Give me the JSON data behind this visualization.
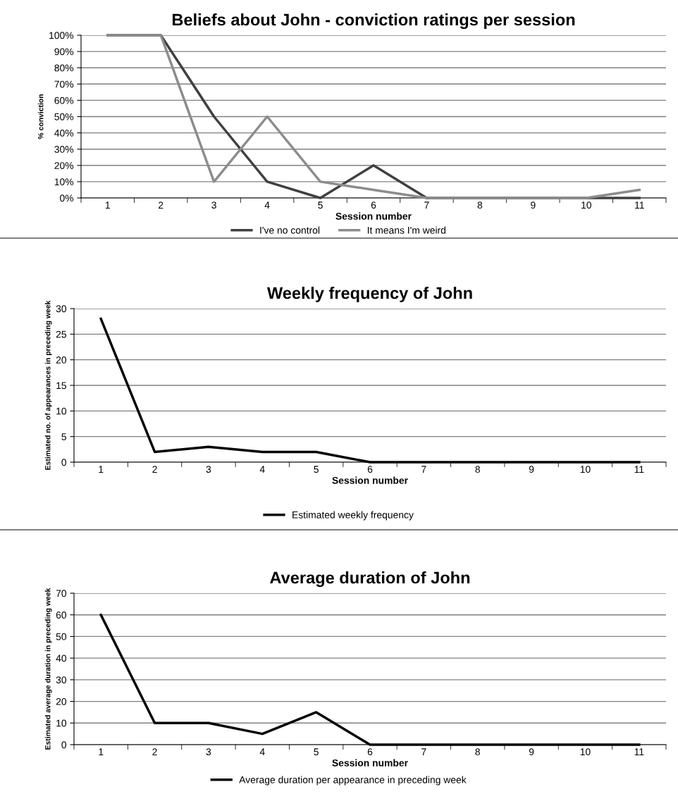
{
  "chart_data": [
    {
      "type": "line",
      "title": "Beliefs about John - conviction ratings per session",
      "xlabel": "Session number",
      "ylabel": "% conviction",
      "categories": [
        "1",
        "2",
        "3",
        "4",
        "5",
        "6",
        "7",
        "8",
        "9",
        "10",
        "11"
      ],
      "series": [
        {
          "name": "I've no control",
          "color": "#404040",
          "values": [
            100,
            100,
            50,
            10,
            0,
            20,
            0,
            0,
            0,
            0,
            0
          ]
        },
        {
          "name": "It means I'm weird",
          "color": "#8c8c8c",
          "values": [
            100,
            100,
            10,
            50,
            10,
            5,
            0,
            0,
            0,
            0,
            5
          ]
        }
      ],
      "ylim": [
        0,
        100
      ],
      "yticks": [
        {
          "value": 0,
          "label": "0%"
        },
        {
          "value": 10,
          "label": "10%"
        },
        {
          "value": 20,
          "label": "20%"
        },
        {
          "value": 30,
          "label": "30%"
        },
        {
          "value": 40,
          "label": "40%"
        },
        {
          "value": 50,
          "label": "50%"
        },
        {
          "value": 60,
          "label": "60%"
        },
        {
          "value": 70,
          "label": "70%"
        },
        {
          "value": 80,
          "label": "80%"
        },
        {
          "value": 90,
          "label": "90%"
        },
        {
          "value": 100,
          "label": "100%"
        }
      ],
      "grid": "y",
      "legend": "bottom",
      "marker": "none",
      "line_style": "solid"
    },
    {
      "type": "line",
      "title": "Weekly frequency of John",
      "xlabel": "Session number",
      "ylabel": "Estimated no. of appearances in preceding week",
      "categories": [
        "1",
        "2",
        "3",
        "4",
        "5",
        "6",
        "7",
        "8",
        "9",
        "10",
        "11"
      ],
      "series": [
        {
          "name": "Estimated weekly frequency",
          "color": "#000000",
          "values": [
            28,
            2,
            3,
            2,
            2,
            0,
            0,
            0,
            0,
            0,
            0
          ]
        }
      ],
      "ylim": [
        0,
        30
      ],
      "yticks": [
        0,
        5,
        10,
        15,
        20,
        25,
        30
      ],
      "grid": "y",
      "legend": "bottom",
      "marker": "none",
      "line_style": "solid"
    },
    {
      "type": "line",
      "title": "Average duration of John",
      "xlabel": "Session number",
      "ylabel": "Estimated average duration in preceding week",
      "categories": [
        "1",
        "2",
        "3",
        "4",
        "5",
        "6",
        "7",
        "8",
        "9",
        "10",
        "11"
      ],
      "series": [
        {
          "name": "Average duration per appearance in preceding week",
          "color": "#000000",
          "values": [
            60,
            10,
            10,
            5,
            15,
            0,
            0,
            0,
            0,
            0,
            0
          ]
        }
      ],
      "ylim": [
        0,
        70
      ],
      "yticks": [
        0,
        10,
        20,
        30,
        40,
        50,
        60,
        70
      ],
      "grid": "y",
      "legend": "bottom",
      "marker": "none",
      "line_style": "solid"
    }
  ]
}
